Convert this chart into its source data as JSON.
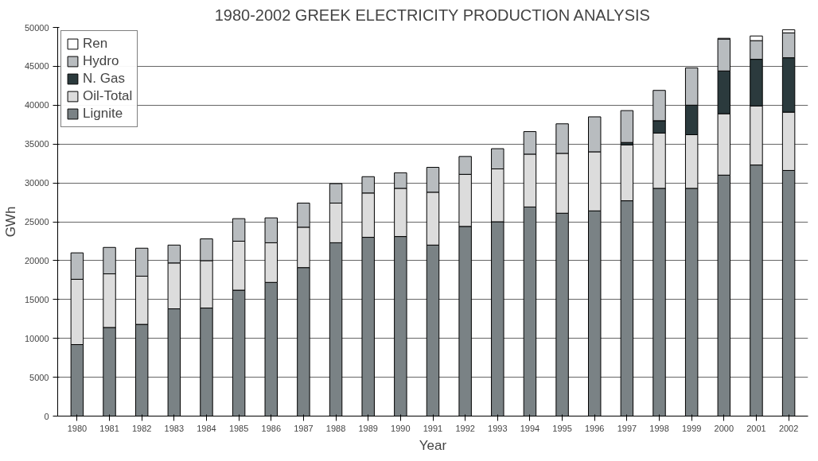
{
  "chart_data": {
    "type": "bar",
    "title": "1980-2002 GREEK ELECTRICITY PRODUCTION ANALYSIS",
    "xlabel": "Year",
    "ylabel": "GWh",
    "categories": [
      "1980",
      "1981",
      "1982",
      "1983",
      "1984",
      "1985",
      "1986",
      "1987",
      "1988",
      "1989",
      "1990",
      "1991",
      "1992",
      "1993",
      "1994",
      "1995",
      "1996",
      "1997",
      "1998",
      "1999",
      "2000",
      "2001",
      "2002"
    ],
    "stacked": true,
    "series": [
      {
        "name": "Lignite",
        "color": "#7a8285",
        "values": [
          9200,
          11400,
          11800,
          13800,
          13900,
          16200,
          17200,
          19100,
          22300,
          23000,
          23100,
          22000,
          24400,
          25000,
          26900,
          26100,
          26400,
          27700,
          29300,
          29300,
          31000,
          32300,
          31600
        ]
      },
      {
        "name": "Oil-Total",
        "color": "#dcdcdc",
        "values": [
          8400,
          6900,
          6200,
          5900,
          6100,
          6300,
          5100,
          5200,
          5100,
          5700,
          6200,
          6800,
          6700,
          6800,
          6800,
          7700,
          7600,
          7200,
          7100,
          6900,
          7900,
          7600,
          7500
        ]
      },
      {
        "name": "N. Gas",
        "color": "#2b3a3d",
        "values": [
          null,
          null,
          null,
          null,
          null,
          null,
          null,
          null,
          null,
          null,
          null,
          null,
          null,
          null,
          null,
          null,
          null,
          300,
          1600,
          3800,
          5500,
          6000,
          7000
        ]
      },
      {
        "name": "Hydro",
        "color": "#b8bcbf",
        "values": [
          3400,
          3400,
          3600,
          2300,
          2800,
          2900,
          3200,
          3100,
          2500,
          2100,
          2000,
          3200,
          2300,
          2600,
          2900,
          3800,
          4500,
          4100,
          3900,
          4800,
          4100,
          2400,
          3200
        ]
      },
      {
        "name": "Ren",
        "color": "#ffffff",
        "values": [
          null,
          null,
          null,
          null,
          null,
          null,
          null,
          null,
          null,
          null,
          null,
          null,
          null,
          null,
          null,
          null,
          null,
          null,
          null,
          null,
          100,
          600,
          400
        ]
      }
    ],
    "ylim": [
      0,
      50000
    ],
    "yticks": [
      0,
      5000,
      10000,
      15000,
      20000,
      25000,
      30000,
      35000,
      40000,
      45000,
      50000
    ],
    "grid": "y",
    "legend": "top left"
  }
}
